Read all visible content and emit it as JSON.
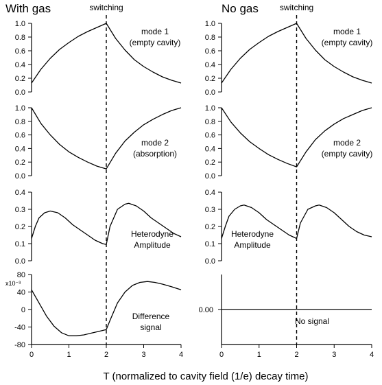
{
  "xlabel": "T (normalized to cavity field (1/e) decay time)",
  "columns": [
    {
      "title": "With gas",
      "switch_label": "switching"
    },
    {
      "title": "No gas",
      "switch_label": "switching"
    }
  ],
  "chart_data": [
    {
      "type": "line",
      "panel": "with-gas-mode1",
      "column": 0,
      "row": 0,
      "annotation": [
        "mode 1",
        "(empty cavity)"
      ],
      "xlim": [
        0,
        4
      ],
      "ylim": [
        0,
        1.0
      ],
      "yticks": [
        0.0,
        0.2,
        0.4,
        0.6,
        0.8,
        1.0
      ],
      "ytick_labels": [
        "0.0",
        "0.2",
        "0.4",
        "0.6",
        "0.8",
        "1.0"
      ],
      "x": [
        0,
        0.25,
        0.5,
        0.75,
        1.0,
        1.25,
        1.5,
        1.75,
        2.0,
        2.25,
        2.5,
        2.75,
        3.0,
        3.25,
        3.5,
        3.75,
        4.0
      ],
      "y": [
        0.13,
        0.33,
        0.49,
        0.62,
        0.72,
        0.81,
        0.88,
        0.94,
        1.0,
        0.78,
        0.61,
        0.47,
        0.37,
        0.29,
        0.22,
        0.17,
        0.13
      ]
    },
    {
      "type": "line",
      "panel": "with-gas-mode2",
      "column": 0,
      "row": 1,
      "annotation": [
        "mode 2",
        "(absorption)"
      ],
      "xlim": [
        0,
        4
      ],
      "ylim": [
        0,
        1.0
      ],
      "yticks": [
        0.0,
        0.2,
        0.4,
        0.6,
        0.8,
        1.0
      ],
      "ytick_labels": [
        "0.0",
        "0.2",
        "0.4",
        "0.6",
        "0.8",
        "1.0"
      ],
      "x": [
        0,
        0.25,
        0.5,
        0.75,
        1.0,
        1.25,
        1.5,
        1.75,
        2.0,
        2.25,
        2.5,
        2.75,
        3.0,
        3.25,
        3.5,
        3.75,
        4.0
      ],
      "y": [
        1.0,
        0.77,
        0.6,
        0.46,
        0.35,
        0.27,
        0.2,
        0.14,
        0.1,
        0.33,
        0.51,
        0.64,
        0.75,
        0.83,
        0.9,
        0.96,
        1.0
      ]
    },
    {
      "type": "line",
      "panel": "with-gas-heterodyne",
      "column": 0,
      "row": 2,
      "annotation": [
        "Heterodyne",
        "Amplitude"
      ],
      "xlim": [
        0,
        4
      ],
      "ylim": [
        0,
        0.4
      ],
      "yticks": [
        0.0,
        0.1,
        0.2,
        0.3,
        0.4
      ],
      "ytick_labels": [
        "0.0",
        "0.1",
        "0.2",
        "0.3",
        "0.4"
      ],
      "x": [
        0,
        0.1,
        0.2,
        0.35,
        0.5,
        0.7,
        0.9,
        1.1,
        1.3,
        1.5,
        1.7,
        1.9,
        2.0,
        2.1,
        2.3,
        2.5,
        2.6,
        2.8,
        3.0,
        3.2,
        3.4,
        3.6,
        3.8,
        4.0
      ],
      "y": [
        0.13,
        0.2,
        0.25,
        0.28,
        0.29,
        0.28,
        0.25,
        0.21,
        0.18,
        0.15,
        0.12,
        0.1,
        0.095,
        0.2,
        0.3,
        0.33,
        0.335,
        0.32,
        0.29,
        0.25,
        0.22,
        0.19,
        0.16,
        0.14
      ]
    },
    {
      "type": "line",
      "panel": "with-gas-difference",
      "column": 0,
      "row": 3,
      "annotation": [
        "Difference",
        "signal"
      ],
      "ylabel_multiplier": "x10⁻³",
      "xlim": [
        0,
        4
      ],
      "ylim": [
        -80,
        80
      ],
      "yticks": [
        -80,
        -40,
        0,
        40,
        80
      ],
      "ytick_labels": [
        "-80",
        "-40",
        "0",
        "40",
        "80"
      ],
      "xticks": [
        0,
        1,
        2,
        3,
        4
      ],
      "xtick_labels": [
        "0",
        "1",
        "2",
        "3",
        "4"
      ],
      "x": [
        0,
        0.2,
        0.4,
        0.6,
        0.8,
        1.0,
        1.2,
        1.4,
        1.6,
        1.8,
        2.0,
        2.1,
        2.3,
        2.5,
        2.7,
        2.9,
        3.1,
        3.3,
        3.5,
        3.75,
        4.0
      ],
      "y": [
        45,
        15,
        -15,
        -38,
        -53,
        -60,
        -60,
        -58,
        -54,
        -50,
        -46,
        -25,
        15,
        40,
        55,
        62,
        64,
        62,
        58,
        52,
        45
      ]
    },
    {
      "type": "line",
      "panel": "no-gas-mode1",
      "column": 1,
      "row": 0,
      "annotation": [
        "mode 1",
        "(empty cavity)"
      ],
      "xlim": [
        0,
        4
      ],
      "ylim": [
        0,
        1.0
      ],
      "yticks": [
        0.0,
        0.2,
        0.4,
        0.6,
        0.8,
        1.0
      ],
      "ytick_labels": [
        "0.0",
        "0.2",
        "0.4",
        "0.6",
        "0.8",
        "1.0"
      ],
      "x": [
        0,
        0.25,
        0.5,
        0.75,
        1.0,
        1.25,
        1.5,
        1.75,
        2.0,
        2.25,
        2.5,
        2.75,
        3.0,
        3.25,
        3.5,
        3.75,
        4.0
      ],
      "y": [
        0.13,
        0.33,
        0.49,
        0.62,
        0.72,
        0.81,
        0.88,
        0.94,
        1.0,
        0.78,
        0.61,
        0.47,
        0.37,
        0.29,
        0.22,
        0.17,
        0.13
      ]
    },
    {
      "type": "line",
      "panel": "no-gas-mode2",
      "column": 1,
      "row": 1,
      "annotation": [
        "mode 2",
        "(empty cavity)"
      ],
      "xlim": [
        0,
        4
      ],
      "ylim": [
        0,
        1.0
      ],
      "yticks": [
        0.0,
        0.2,
        0.4,
        0.6,
        0.8,
        1.0
      ],
      "ytick_labels": [
        "0.0",
        "0.2",
        "0.4",
        "0.6",
        "0.8",
        "1.0"
      ],
      "x": [
        0,
        0.25,
        0.5,
        0.75,
        1.0,
        1.25,
        1.5,
        1.75,
        2.0,
        2.25,
        2.5,
        2.75,
        3.0,
        3.25,
        3.5,
        3.75,
        4.0
      ],
      "y": [
        1.0,
        0.79,
        0.63,
        0.5,
        0.4,
        0.31,
        0.24,
        0.18,
        0.13,
        0.35,
        0.53,
        0.66,
        0.76,
        0.84,
        0.9,
        0.96,
        1.0
      ]
    },
    {
      "type": "line",
      "panel": "no-gas-heterodyne",
      "column": 1,
      "row": 2,
      "annotation": [
        "Heterodyne",
        "Amplitude"
      ],
      "xlim": [
        0,
        4
      ],
      "ylim": [
        0,
        0.4
      ],
      "yticks": [
        0.0,
        0.1,
        0.2,
        0.3,
        0.4
      ],
      "ytick_labels": [
        "0.0",
        "0.1",
        "0.2",
        "0.3",
        "0.4"
      ],
      "x": [
        0,
        0.1,
        0.2,
        0.35,
        0.5,
        0.6,
        0.8,
        1.0,
        1.2,
        1.4,
        1.6,
        1.8,
        2.0,
        2.1,
        2.3,
        2.5,
        2.6,
        2.8,
        3.0,
        3.2,
        3.4,
        3.6,
        3.8,
        4.0
      ],
      "y": [
        0.13,
        0.2,
        0.26,
        0.3,
        0.32,
        0.325,
        0.31,
        0.28,
        0.24,
        0.21,
        0.18,
        0.15,
        0.13,
        0.22,
        0.3,
        0.32,
        0.325,
        0.31,
        0.28,
        0.24,
        0.2,
        0.17,
        0.15,
        0.14
      ]
    },
    {
      "type": "line",
      "panel": "no-gas-difference",
      "column": 1,
      "row": 3,
      "annotation": [
        "No signal"
      ],
      "value_label": "0.00",
      "xlim": [
        0,
        4
      ],
      "ylim": [
        -80,
        80
      ],
      "xticks": [
        0,
        1,
        2,
        3,
        4
      ],
      "xtick_labels": [
        "0",
        "1",
        "2",
        "3",
        "4"
      ],
      "x": [
        0,
        4
      ],
      "y": [
        0,
        0
      ]
    }
  ]
}
